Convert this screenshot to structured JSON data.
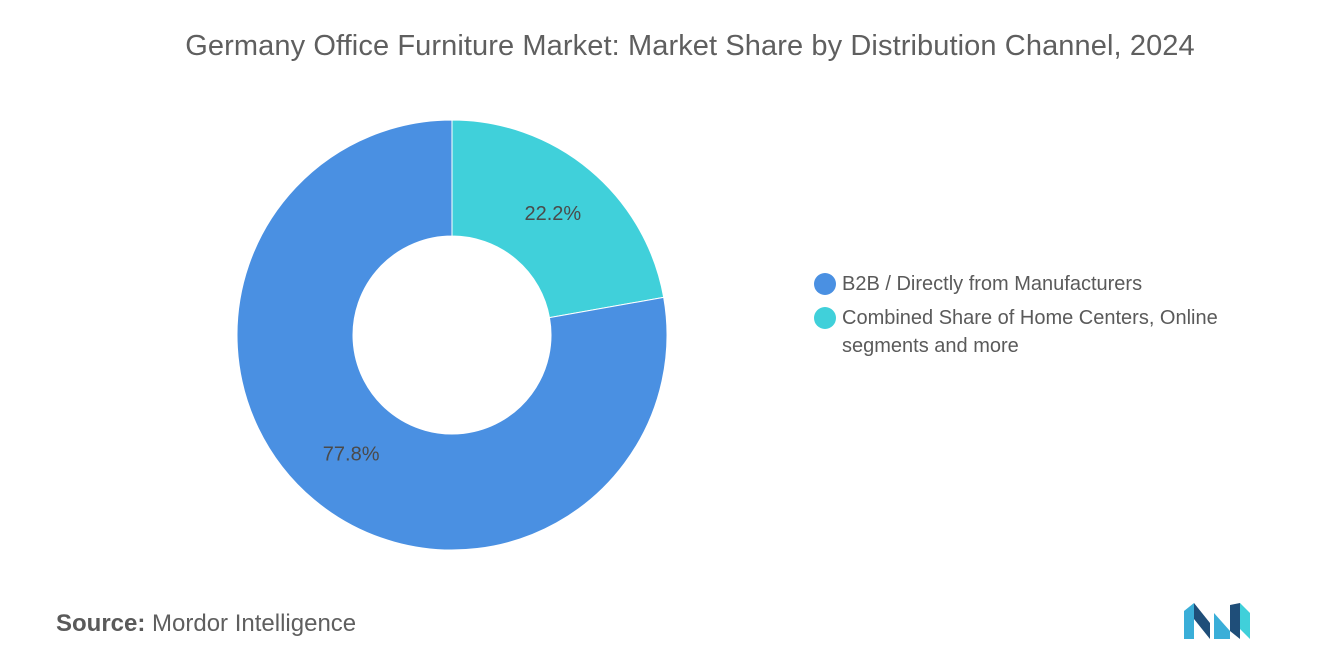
{
  "chart_data": {
    "type": "pie",
    "title": "Germany Office Furniture Market: Market Share by Distribution Channel, 2024",
    "donut": true,
    "categories": [
      "Combined Share of Home Centers, Online segments and more",
      "B2B / Directly from Manufacturers"
    ],
    "values": [
      22.2,
      77.8
    ],
    "data_labels": [
      "22.2%",
      "77.8%"
    ],
    "colors": [
      "#40d0da",
      "#4a90e2"
    ],
    "legend_position": "right"
  },
  "legend": {
    "items": [
      {
        "label": "B2B / Directly from Manufacturers",
        "color": "#4a90e2"
      },
      {
        "label": "Combined Share of Home Centers, Online segments and more",
        "color": "#40d0da"
      }
    ]
  },
  "source": {
    "prefix": "Source:",
    "text": "Mordor Intelligence"
  },
  "logo": {
    "icon": "mordor-intelligence-logo-icon",
    "colors": [
      "#3aaed8",
      "#1f4e79",
      "#40d0da"
    ]
  }
}
